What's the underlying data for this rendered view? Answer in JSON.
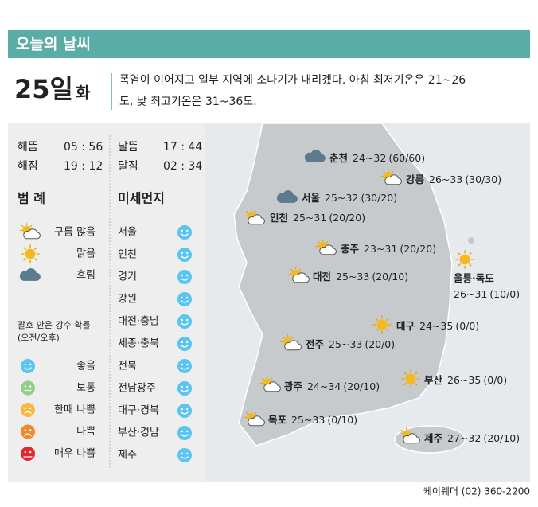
{
  "header": {
    "title": "오늘의 날씨"
  },
  "date": {
    "day": "25일",
    "weekday": "화"
  },
  "summary": [
    "폭염이 이어지고 일부 지역에 소나기가 내리겠다. 아침 최저기온은 21~26",
    "도, 낮 최고기온은 31~36도."
  ],
  "sun_moon": [
    {
      "label": "해뜸",
      "time": "05 : 56"
    },
    {
      "label": "해짐",
      "time": "19 : 12"
    },
    {
      "label": "달뜸",
      "time": "17 : 44"
    },
    {
      "label": "달짐",
      "time": "02 : 34"
    }
  ],
  "legend": {
    "title": "범 례",
    "items": [
      {
        "label": "구름 많음",
        "icon": "partly"
      },
      {
        "label": "맑음",
        "icon": "sunny"
      },
      {
        "label": "흐림",
        "icon": "cloudy"
      }
    ],
    "note": [
      "괄호 안은 강수 확률",
      "(오전/오후)"
    ],
    "dust_levels": [
      {
        "label": "좋음",
        "color": "#5bc4f0"
      },
      {
        "label": "보통",
        "color": "#8fcf8a"
      },
      {
        "label": "한때 나쁨",
        "color": "#f7b944"
      },
      {
        "label": "나쁨",
        "color": "#f08a2c"
      },
      {
        "label": "매우 나쁨",
        "color": "#e1262f"
      }
    ]
  },
  "fine_dust": {
    "title": "미세먼지",
    "regions": [
      {
        "name": "서울",
        "level": 0
      },
      {
        "name": "인천",
        "level": 0
      },
      {
        "name": "경기",
        "level": 0
      },
      {
        "name": "강원",
        "level": 0
      },
      {
        "name": "대전·충남",
        "level": 0
      },
      {
        "name": "세종·충북",
        "level": 0
      },
      {
        "name": "전북",
        "level": 0
      },
      {
        "name": "전남광주",
        "level": 0
      },
      {
        "name": "대구·경북",
        "level": 0
      },
      {
        "name": "부산·경남",
        "level": 0
      },
      {
        "name": "제주",
        "level": 0
      }
    ]
  },
  "cities": [
    {
      "name": "춘천",
      "temp": "24~32",
      "pop": "(60/60)",
      "icon": "cloudy"
    },
    {
      "name": "강릉",
      "temp": "26~33",
      "pop": "(30/30)",
      "icon": "partly"
    },
    {
      "name": "서울",
      "temp": "25~32",
      "pop": "(30/20)",
      "icon": "cloudy"
    },
    {
      "name": "인천",
      "temp": "25~31",
      "pop": "(20/20)",
      "icon": "partly"
    },
    {
      "name": "충주",
      "temp": "23~31",
      "pop": "(20/20)",
      "icon": "partly"
    },
    {
      "name": "대전",
      "temp": "25~33",
      "pop": "(20/10)",
      "icon": "partly"
    },
    {
      "name": "울릉·독도",
      "temp": "26~31",
      "pop": "(10/0)",
      "icon": "sunny"
    },
    {
      "name": "대구",
      "temp": "24~35",
      "pop": "(0/0)",
      "icon": "sunny"
    },
    {
      "name": "전주",
      "temp": "25~33",
      "pop": "(20/0)",
      "icon": "partly"
    },
    {
      "name": "광주",
      "temp": "24~34",
      "pop": "(20/10)",
      "icon": "partly"
    },
    {
      "name": "부산",
      "temp": "26~35",
      "pop": "(0/0)",
      "icon": "sunny"
    },
    {
      "name": "목포",
      "temp": "25~33",
      "pop": "(0/10)",
      "icon": "partly"
    },
    {
      "name": "제주",
      "temp": "27~32",
      "pop": "(20/10)",
      "icon": "partly"
    }
  ],
  "footer": "케이웨더 (02) 360-2200"
}
